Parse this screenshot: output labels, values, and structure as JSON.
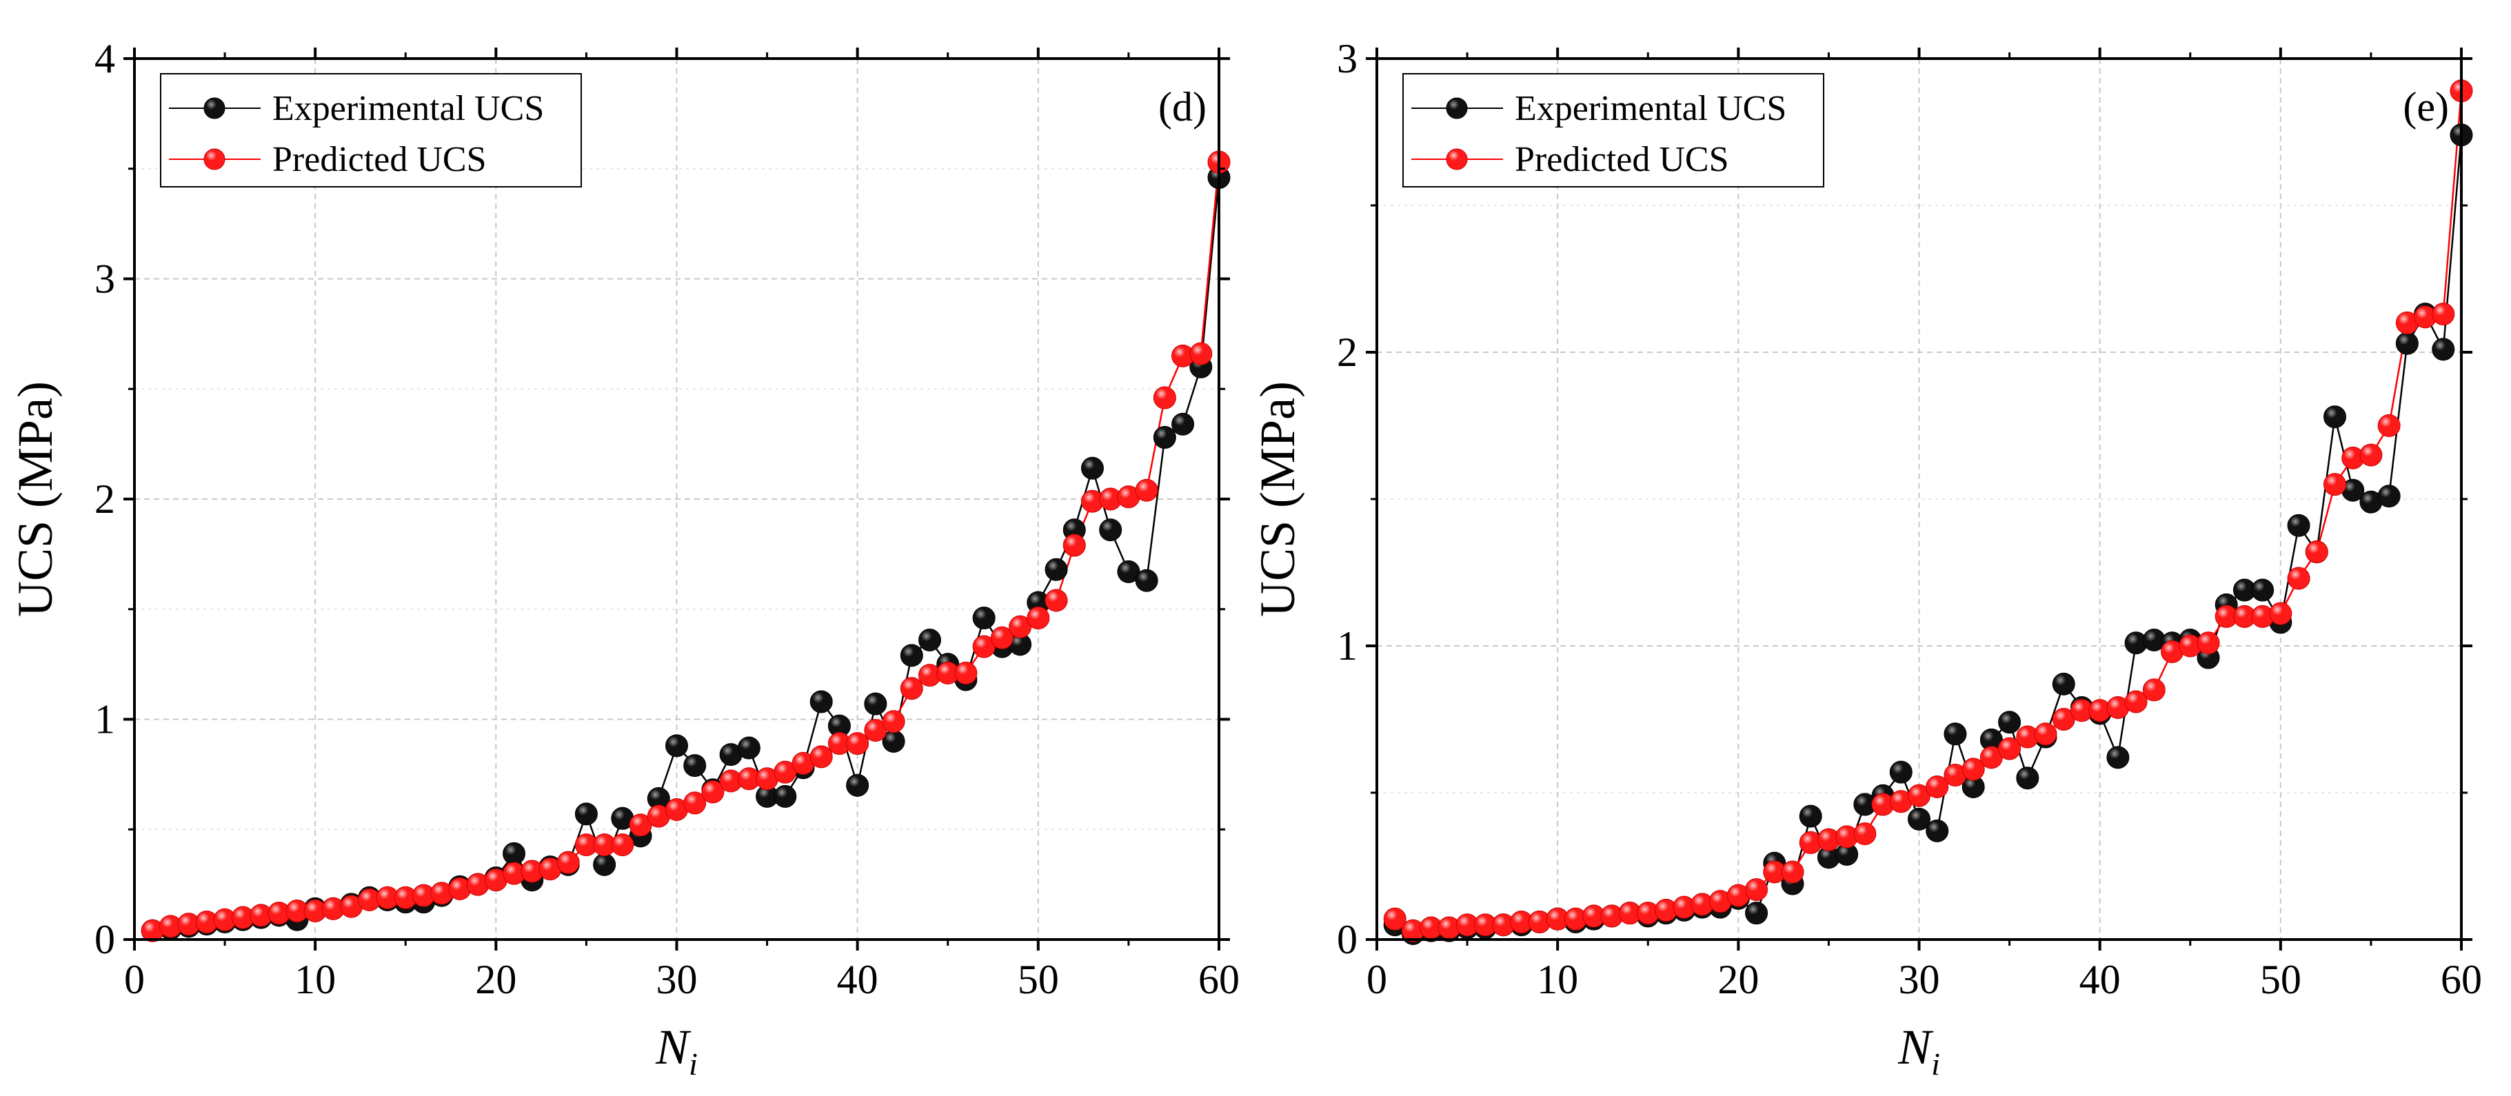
{
  "figure": {
    "panels": [
      "d",
      "e"
    ]
  },
  "chart_data": [
    {
      "type": "line",
      "panel_label": "(d)",
      "xlabel_main": "N",
      "xlabel_sub": "i",
      "ylabel": "UCS (MPa)",
      "xlim": [
        0,
        60
      ],
      "ylim": [
        0,
        4
      ],
      "xticks": [
        0,
        10,
        20,
        30,
        40,
        50,
        60
      ],
      "yticks": [
        0,
        1,
        2,
        3,
        4
      ],
      "grid": true,
      "legend_position": "top-left",
      "x": [
        1,
        2,
        3,
        4,
        5,
        6,
        7,
        8,
        9,
        10,
        11,
        12,
        13,
        14,
        15,
        16,
        17,
        18,
        19,
        20,
        21,
        22,
        23,
        24,
        25,
        26,
        27,
        28,
        29,
        30,
        31,
        32,
        33,
        34,
        35,
        36,
        37,
        38,
        39,
        40,
        41,
        42,
        43,
        44,
        45,
        46,
        47,
        48,
        49,
        50,
        51,
        52,
        53,
        54,
        55,
        56,
        57,
        58,
        59,
        60
      ],
      "series": [
        {
          "name": "Experimental UCS",
          "color": "#000000",
          "marker_color": "#111111",
          "values": [
            0.04,
            0.05,
            0.06,
            0.07,
            0.08,
            0.09,
            0.1,
            0.11,
            0.09,
            0.14,
            0.14,
            0.16,
            0.19,
            0.18,
            0.17,
            0.17,
            0.2,
            0.24,
            0.25,
            0.28,
            0.39,
            0.27,
            0.33,
            0.34,
            0.57,
            0.34,
            0.55,
            0.47,
            0.64,
            0.88,
            0.79,
            0.68,
            0.84,
            0.87,
            0.65,
            0.65,
            0.78,
            1.08,
            0.97,
            0.7,
            1.07,
            0.9,
            1.29,
            1.36,
            1.25,
            1.18,
            1.46,
            1.33,
            1.34,
            1.53,
            1.68,
            1.86,
            2.14,
            1.86,
            1.67,
            1.63,
            2.28,
            2.34,
            2.6,
            3.46
          ]
        },
        {
          "name": "Predicted UCS",
          "color": "#ff0000",
          "marker_color": "#ff1a1a",
          "values": [
            0.04,
            0.06,
            0.07,
            0.08,
            0.09,
            0.1,
            0.11,
            0.12,
            0.13,
            0.13,
            0.14,
            0.15,
            0.18,
            0.19,
            0.19,
            0.2,
            0.21,
            0.23,
            0.25,
            0.27,
            0.3,
            0.31,
            0.32,
            0.35,
            0.43,
            0.43,
            0.43,
            0.52,
            0.56,
            0.59,
            0.62,
            0.67,
            0.72,
            0.73,
            0.73,
            0.76,
            0.8,
            0.83,
            0.89,
            0.89,
            0.95,
            0.99,
            1.14,
            1.2,
            1.21,
            1.21,
            1.33,
            1.37,
            1.42,
            1.46,
            1.54,
            1.79,
            1.99,
            2.0,
            2.01,
            2.04,
            2.46,
            2.65,
            2.66,
            3.53
          ]
        }
      ]
    },
    {
      "type": "line",
      "panel_label": "(e)",
      "xlabel_main": "N",
      "xlabel_sub": "i",
      "ylabel": "UCS (MPa)",
      "xlim": [
        0,
        60
      ],
      "ylim": [
        0,
        3
      ],
      "xticks": [
        0,
        10,
        20,
        30,
        40,
        50,
        60
      ],
      "yticks": [
        0,
        1,
        2,
        3
      ],
      "grid": true,
      "legend_position": "top-left",
      "x": [
        1,
        2,
        3,
        4,
        5,
        6,
        7,
        8,
        9,
        10,
        11,
        12,
        13,
        14,
        15,
        16,
        17,
        18,
        19,
        20,
        21,
        22,
        23,
        24,
        25,
        26,
        27,
        28,
        29,
        30,
        31,
        32,
        33,
        34,
        35,
        36,
        37,
        38,
        39,
        40,
        41,
        42,
        43,
        44,
        45,
        46,
        47,
        48,
        49,
        50,
        51,
        52,
        53,
        54,
        55,
        56,
        57,
        58,
        59,
        60
      ],
      "series": [
        {
          "name": "Experimental UCS",
          "color": "#000000",
          "marker_color": "#111111",
          "values": [
            0.05,
            0.02,
            0.03,
            0.03,
            0.04,
            0.04,
            0.05,
            0.05,
            0.06,
            0.07,
            0.06,
            0.07,
            0.08,
            0.09,
            0.08,
            0.09,
            0.1,
            0.11,
            0.11,
            0.14,
            0.09,
            0.26,
            0.19,
            0.42,
            0.28,
            0.29,
            0.46,
            0.49,
            0.57,
            0.41,
            0.37,
            0.7,
            0.52,
            0.68,
            0.74,
            0.55,
            0.69,
            0.87,
            0.79,
            0.77,
            0.62,
            1.01,
            1.02,
            1.01,
            1.02,
            0.96,
            1.14,
            1.19,
            1.19,
            1.08,
            1.41,
            1.32,
            1.78,
            1.53,
            1.49,
            1.51,
            2.03,
            2.13,
            2.01,
            2.74
          ]
        },
        {
          "name": "Predicted UCS",
          "color": "#ff0000",
          "marker_color": "#ff1a1a",
          "values": [
            0.07,
            0.03,
            0.04,
            0.04,
            0.05,
            0.05,
            0.05,
            0.06,
            0.06,
            0.07,
            0.07,
            0.08,
            0.08,
            0.09,
            0.09,
            0.1,
            0.11,
            0.12,
            0.13,
            0.15,
            0.17,
            0.23,
            0.23,
            0.33,
            0.34,
            0.35,
            0.36,
            0.46,
            0.47,
            0.49,
            0.52,
            0.56,
            0.58,
            0.62,
            0.65,
            0.69,
            0.7,
            0.75,
            0.78,
            0.78,
            0.79,
            0.81,
            0.85,
            0.98,
            1.0,
            1.01,
            1.1,
            1.1,
            1.1,
            1.11,
            1.23,
            1.32,
            1.55,
            1.64,
            1.65,
            1.75,
            2.1,
            2.12,
            2.13,
            2.89
          ]
        }
      ]
    }
  ]
}
